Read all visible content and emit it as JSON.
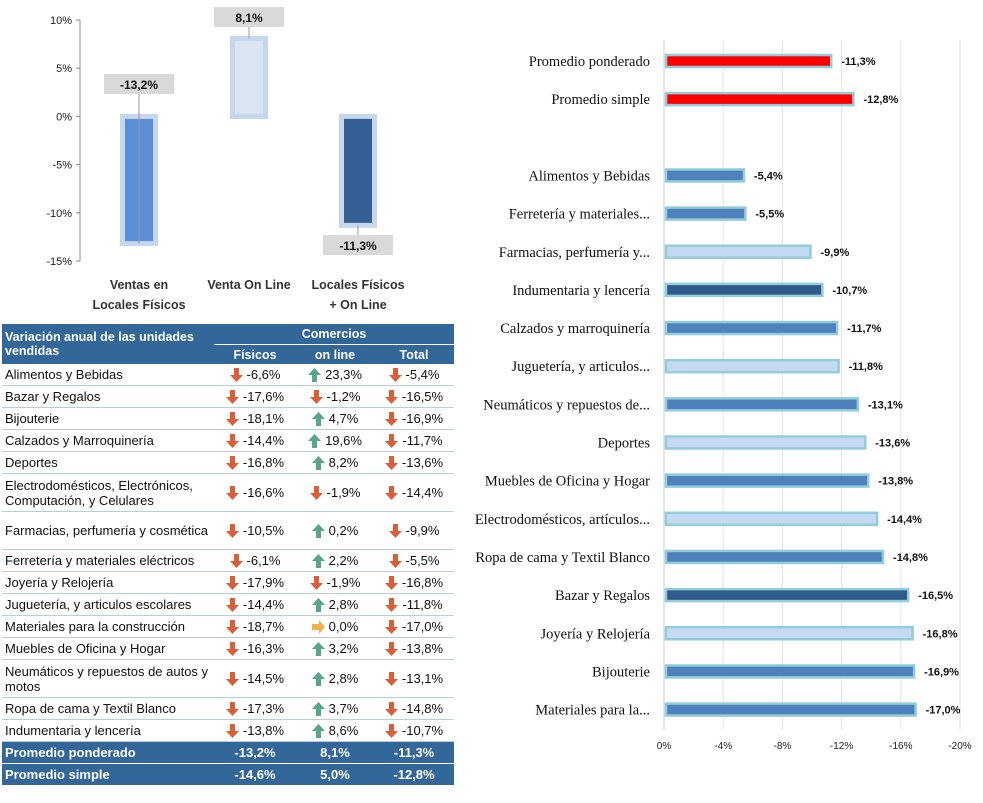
{
  "chart_data": [
    {
      "type": "bar",
      "categories": [
        "Ventas en Locales Físicos",
        "Venta On Line",
        "Locales Físicos + On Line"
      ],
      "category_lines": [
        [
          "Ventas en",
          "Locales Físicos"
        ],
        [
          "Venta On Line"
        ],
        [
          "Locales Físicos",
          "+ On Line"
        ]
      ],
      "values": [
        -13.2,
        8.1,
        -11.3
      ],
      "data_labels": [
        "-13,2%",
        "8,1%",
        "-11,3%"
      ],
      "ylim": [
        -15,
        10
      ],
      "yticks": [
        10,
        5,
        0,
        -5,
        -10,
        -15
      ],
      "ytick_labels": [
        "10%",
        "5%",
        "0%",
        "-5%",
        "-10%",
        "-15%"
      ],
      "bar_colors": [
        "#5b8fd6",
        "#dbe5f1",
        "#355f94"
      ],
      "grid": false
    },
    {
      "type": "bar",
      "orientation": "horizontal",
      "categories": [
        "Promedio ponderado",
        "Promedio simple",
        "",
        "Alimentos y Bebidas",
        "Ferretería y materiales...",
        "Farmacias, perfumería y...",
        "Indumentaria y lencería",
        "Calzados y marroquinería",
        "Juguetería, y articulos...",
        "Neumáticos y repuestos de...",
        "Deportes",
        "Muebles de Oficina y Hogar",
        "Electrodomésticos, artículos...",
        "Ropa de cama y Textil Blanco",
        "Bazar y Regalos",
        "Joyería y Relojería",
        "Bijouterie",
        "Materiales para la..."
      ],
      "values": [
        -11.3,
        -12.8,
        null,
        -5.4,
        -5.5,
        -9.9,
        -10.7,
        -11.7,
        -11.8,
        -13.1,
        -13.6,
        -13.8,
        -14.4,
        -14.8,
        -16.5,
        -16.8,
        -16.9,
        -17.0
      ],
      "data_labels": [
        "-11,3%",
        "-12,8%",
        "",
        "-5,4%",
        "-5,5%",
        "-9,9%",
        "-10,7%",
        "-11,7%",
        "-11,8%",
        "-13,1%",
        "-13,6%",
        "-13,8%",
        "-14,4%",
        "-14,8%",
        "-16,5%",
        "-16,8%",
        "-16,9%",
        "-17,0%"
      ],
      "bar_colors": [
        "#ff0000",
        "#ff0000",
        null,
        "#4f81bd",
        "#4f81bd",
        "#c5d9f1",
        "#2f5a8a",
        "#4f81bd",
        "#c5d9f1",
        "#4f81bd",
        "#c5d9f1",
        "#4f81bd",
        "#c5d9f1",
        "#4f81bd",
        "#2f5a8a",
        "#c5d9f1",
        "#4f81bd",
        "#4f81bd"
      ],
      "xlim": [
        0,
        -20
      ],
      "xticks": [
        0,
        -4,
        -8,
        -12,
        -16,
        -20
      ],
      "xtick_labels": [
        "0%",
        "-4%",
        "-8%",
        "-12%",
        "-16%",
        "-20%"
      ],
      "grid": true
    },
    {
      "type": "table",
      "header": {
        "title": "Variación anual de las unidades vendidas",
        "group": "Comercios",
        "columns": [
          "Físicos",
          "on line",
          "Total"
        ]
      },
      "rows": [
        {
          "label": "Alimentos y Bebidas",
          "fisicos": "-6,6%",
          "online": "23,3%",
          "total": "-5,4%",
          "icons": [
            "down",
            "up",
            "down"
          ]
        },
        {
          "label": "Bazar y Regalos",
          "fisicos": "-17,6%",
          "online": "-1,2%",
          "total": "-16,5%",
          "icons": [
            "down",
            "down",
            "down"
          ]
        },
        {
          "label": "Bijouterie",
          "fisicos": "-18,1%",
          "online": "4,7%",
          "total": "-16,9%",
          "icons": [
            "down",
            "up",
            "down"
          ]
        },
        {
          "label": "Calzados y Marroquinería",
          "fisicos": "-14,4%",
          "online": "19,6%",
          "total": "-11,7%",
          "icons": [
            "down",
            "up",
            "down"
          ]
        },
        {
          "label": "Deportes",
          "fisicos": "-16,8%",
          "online": "8,2%",
          "total": "-13,6%",
          "icons": [
            "down",
            "up",
            "down"
          ]
        },
        {
          "label": "Electrodomésticos, Electrónicos, Computación, y Celulares",
          "fisicos": "-16,6%",
          "online": "-1,9%",
          "total": "-14,4%",
          "icons": [
            "down",
            "down",
            "down"
          ],
          "two_line": true
        },
        {
          "label": "Farmacias, perfumería y cosmética",
          "fisicos": "-10,5%",
          "online": "0,2%",
          "total": "-9,9%",
          "icons": [
            "down",
            "up",
            "down"
          ],
          "two_line": true
        },
        {
          "label": "Ferretería y materiales eléctricos",
          "fisicos": "-6,1%",
          "online": "2,2%",
          "total": "-5,5%",
          "icons": [
            "down",
            "up",
            "down"
          ]
        },
        {
          "label": "Joyería y Relojería",
          "fisicos": "-17,9%",
          "online": "-1,9%",
          "total": "-16,8%",
          "icons": [
            "down",
            "down",
            "down"
          ]
        },
        {
          "label": "Juguetería, y articulos escolares",
          "fisicos": "-14,4%",
          "online": "2,8%",
          "total": "-11,8%",
          "icons": [
            "down",
            "up",
            "down"
          ]
        },
        {
          "label": "Materiales para la construcción",
          "fisicos": "-18,7%",
          "online": "0,0%",
          "total": "-17,0%",
          "icons": [
            "down",
            "right",
            "down"
          ]
        },
        {
          "label": "Muebles de Oficina y Hogar",
          "fisicos": "-16,3%",
          "online": "3,2%",
          "total": "-13,8%",
          "icons": [
            "down",
            "up",
            "down"
          ]
        },
        {
          "label": "Neumáticos y repuestos de autos y motos",
          "fisicos": "-14,5%",
          "online": "2,8%",
          "total": "-13,1%",
          "icons": [
            "down",
            "up",
            "down"
          ],
          "two_line": true
        },
        {
          "label": "Ropa de cama y Textil Blanco",
          "fisicos": "-17,3%",
          "online": "3,7%",
          "total": "-14,8%",
          "icons": [
            "down",
            "up",
            "down"
          ]
        },
        {
          "label": "Indumentaria y lencería",
          "fisicos": "-13,8%",
          "online": "8,6%",
          "total": "-10,7%",
          "icons": [
            "down",
            "up",
            "down"
          ]
        }
      ],
      "footer": [
        {
          "label": "Promedio ponderado",
          "fisicos": "-13,2%",
          "online": "8,1%",
          "total": "-11,3%"
        },
        {
          "label": "Promedio simple",
          "fisicos": "-14,6%",
          "online": "5,0%",
          "total": "-12,8%"
        }
      ],
      "icon_colors": {
        "down": "#d95f3b",
        "up": "#5aa58a",
        "right": "#f0b24a"
      }
    }
  ]
}
